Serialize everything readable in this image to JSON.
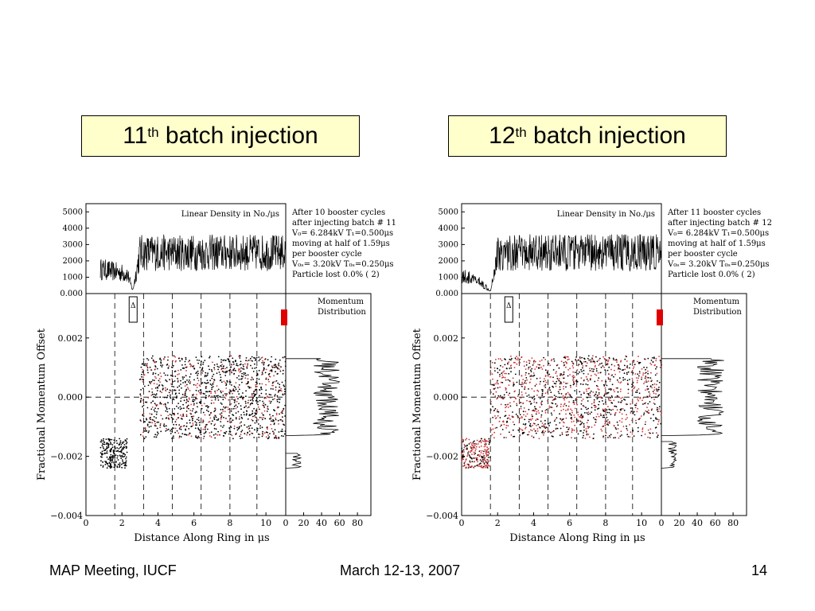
{
  "slide": {
    "footer_left": "MAP Meeting, IUCF",
    "footer_center": "March 12-13, 2007",
    "footer_right": "14"
  },
  "colors": {
    "title_box": "#ffffcc",
    "marker_red": "#e00000",
    "particle_red": "#cc3333",
    "ink": "#000000"
  },
  "panels": [
    {
      "title_num": "11",
      "title_sup": "th",
      "title_rest": " batch injection",
      "info_lines": [
        "After 10 booster cycles",
        "after injecting batch # 11",
        "V₀= 6.284kV T₁=0.500μs",
        "moving at half of 1.59μs",
        "per booster cycle",
        "V₀ₛ= 3.20kV T₀ₛ=0.250μs",
        "Particle lost  0.0% (   2)"
      ],
      "red_fraction": 0.25
    },
    {
      "title_num": "12",
      "title_sup": "th",
      "title_rest": " batch injection",
      "info_lines": [
        "After 11 booster cycles",
        "after injecting batch # 12",
        "V₀= 6.284kV T₁=0.500μs",
        "moving at half of 1.59μs",
        "per booster cycle",
        "V₀ₛ= 3.20kV T₀ₛ=0.250μs",
        "Particle lost  0.0% (   2)"
      ],
      "red_fraction": 0.5
    }
  ],
  "chart_data": [
    {
      "type": "scatter",
      "title": "11th batch injection",
      "xlabel": "Distance Along Ring in μs",
      "ylabel": "Fractional Momentum Offset",
      "xlim": [
        0,
        11.1
      ],
      "ylim": [
        -0.004,
        0.0035
      ],
      "xticks": [
        "0",
        "2",
        "4",
        "6",
        "8",
        "10"
      ],
      "yticks": [
        "−0.004",
        "−0.002",
        "0.000",
        "0.002"
      ],
      "dashed_x": [
        1.6,
        3.2,
        4.8,
        6.4,
        8.0,
        9.5
      ],
      "old_bunch": {
        "x": [
          3.0,
          11.1
        ],
        "y": [
          -0.0014,
          0.0014
        ]
      },
      "new_bunch": {
        "x": [
          0.8,
          2.3
        ],
        "y": [
          -0.0024,
          -0.0014
        ]
      },
      "density": {
        "title": "Linear Density in No./μs",
        "ylim": [
          0,
          5500
        ],
        "yticks": [
          "0.000",
          "1000",
          "2000",
          "3000",
          "4000",
          "5000"
        ],
        "profile": [
          {
            "x": 0.8,
            "y": 1500
          },
          {
            "x": 2.3,
            "y": 1200
          },
          {
            "x": 2.6,
            "y": 200
          },
          {
            "x": 3.0,
            "y": 2500
          },
          {
            "x": 11.1,
            "y": 2500
          }
        ]
      },
      "momentum": {
        "title_lines": [
          "Momentum",
          "Distribution"
        ],
        "xlim": [
          0,
          95
        ],
        "xticks": [
          "0",
          "20",
          "40",
          "60",
          "80"
        ],
        "profile": [
          {
            "y": 0.0013,
            "x": 45
          },
          {
            "y": -0.0013,
            "x": 45
          },
          {
            "y": -0.0019,
            "x": 12
          },
          {
            "y": -0.0024,
            "x": 12
          }
        ]
      }
    },
    {
      "type": "scatter",
      "title": "12th batch injection",
      "xlabel": "Distance Along Ring in μs",
      "ylabel": "Fractional Momentum Offset",
      "xlim": [
        0,
        11.1
      ],
      "ylim": [
        -0.004,
        0.0035
      ],
      "xticks": [
        "0",
        "2",
        "4",
        "6",
        "8",
        "10"
      ],
      "yticks": [
        "−0.004",
        "−0.002",
        "0.000",
        "0.002"
      ],
      "dashed_x": [
        1.6,
        3.2,
        4.8,
        6.4,
        8.0,
        9.5
      ],
      "old_bunch": {
        "x": [
          1.6,
          11.1
        ],
        "y": [
          -0.0014,
          0.0014
        ]
      },
      "new_bunch": {
        "x": [
          0.0,
          1.6
        ],
        "y": [
          -0.0024,
          -0.0014
        ]
      },
      "density": {
        "title": "Linear Density in No./μs",
        "ylim": [
          0,
          5500
        ],
        "yticks": [
          "0.000",
          "1000",
          "2000",
          "3000",
          "4000",
          "5000"
        ],
        "profile": [
          {
            "x": 0.0,
            "y": 1100
          },
          {
            "x": 1.0,
            "y": 700
          },
          {
            "x": 1.6,
            "y": 200
          },
          {
            "x": 2.0,
            "y": 2500
          },
          {
            "x": 11.1,
            "y": 2500
          }
        ]
      },
      "momentum": {
        "title_lines": [
          "Momentum",
          "Distribution"
        ],
        "xlim": [
          0,
          95
        ],
        "xticks": [
          "0",
          "20",
          "40",
          "60",
          "80"
        ],
        "profile": [
          {
            "y": 0.0013,
            "x": 55
          },
          {
            "y": -0.0013,
            "x": 55
          },
          {
            "y": -0.0015,
            "x": 12
          },
          {
            "y": -0.0024,
            "x": 12
          }
        ]
      }
    }
  ]
}
